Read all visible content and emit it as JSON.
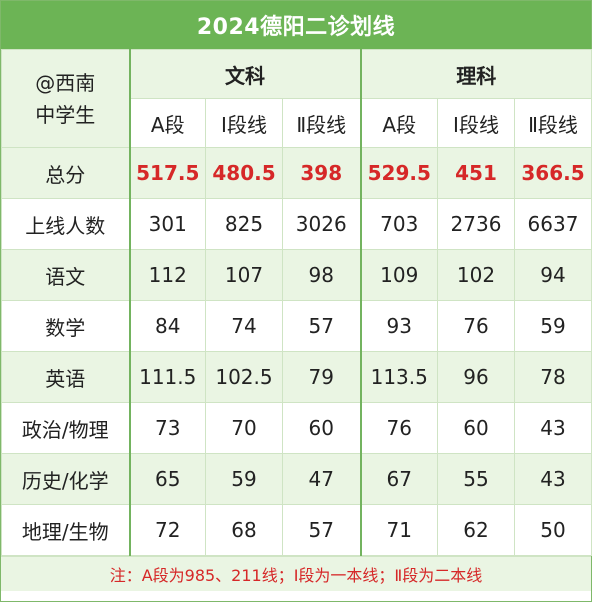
{
  "title": "2024德阳二诊划线",
  "corner": {
    "line1": "@西南",
    "line2": "中学生"
  },
  "groups": {
    "wen": "文科",
    "li": "理科"
  },
  "subheaders": [
    "A段",
    "Ⅰ段线",
    "Ⅱ段线",
    "A段",
    "Ⅰ段线",
    "Ⅱ段线"
  ],
  "rows": [
    {
      "label": "总分",
      "values": [
        "517.5",
        "480.5",
        "398",
        "529.5",
        "451",
        "366.5"
      ]
    },
    {
      "label": "上线人数",
      "values": [
        "301",
        "825",
        "3026",
        "703",
        "2736",
        "6637"
      ]
    },
    {
      "label": "语文",
      "values": [
        "112",
        "107",
        "98",
        "109",
        "102",
        "94"
      ]
    },
    {
      "label": "数学",
      "values": [
        "84",
        "74",
        "57",
        "93",
        "76",
        "59"
      ]
    },
    {
      "label": "英语",
      "values": [
        "111.5",
        "102.5",
        "79",
        "113.5",
        "96",
        "78"
      ]
    },
    {
      "label": "政治/物理",
      "values": [
        "73",
        "70",
        "60",
        "76",
        "60",
        "43"
      ]
    },
    {
      "label": "历史/化学",
      "values": [
        "65",
        "59",
        "47",
        "67",
        "55",
        "43"
      ]
    },
    {
      "label": "地理/生物",
      "values": [
        "72",
        "68",
        "57",
        "71",
        "62",
        "50"
      ]
    }
  ],
  "footer": "注：A段为985、211线；Ⅰ段为一本线；Ⅱ段为二本线",
  "colors": {
    "accent": "#6cb455",
    "highlight": "#d62828",
    "row_alt": "#eaf5e3"
  }
}
